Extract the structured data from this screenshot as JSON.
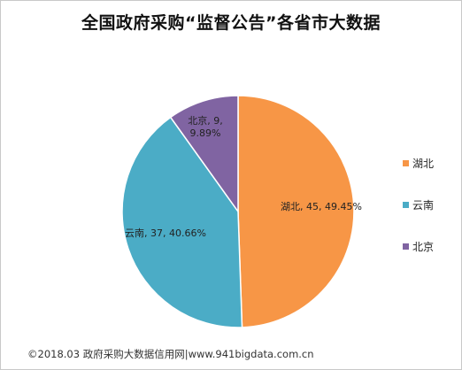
{
  "chart_data": {
    "type": "pie",
    "title": "全国政府采购“监督公告”各省市大数据",
    "slices": [
      {
        "name": "湖北",
        "value": 45,
        "percent": "49.45%",
        "color": "#f79646"
      },
      {
        "name": "云南",
        "value": 37,
        "percent": "40.66%",
        "color": "#4bacc6"
      },
      {
        "name": "北京",
        "value": 9,
        "percent": "9.89%",
        "color": "#8064a2"
      }
    ],
    "labels": [
      {
        "name": "湖北",
        "lines": [
          "湖北, 45, 49.45%"
        ]
      },
      {
        "name": "云南",
        "lines": [
          "云南, 37, 40.66%"
        ]
      },
      {
        "name": "北京",
        "lines": [
          "北京, 9,",
          "9.89%"
        ]
      }
    ],
    "legend_position": "right"
  },
  "footer": {
    "text": "©2018.03 政府采购大数据信用网|www.941bigdata.com.cn"
  }
}
